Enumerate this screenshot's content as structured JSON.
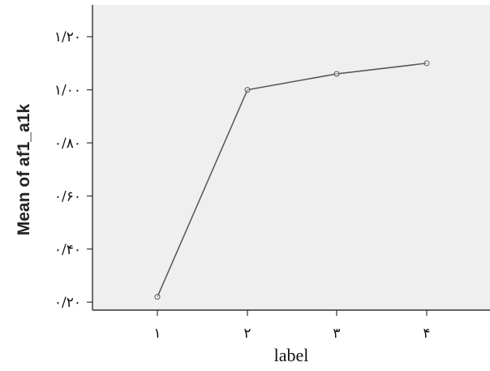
{
  "chart_data": {
    "type": "line",
    "xlabel": "label",
    "ylabel": "Mean of af1_a1k",
    "x": [
      "۱",
      "۲",
      "۳",
      "۴"
    ],
    "series": [
      {
        "values": [
          0.22,
          1.0,
          1.06,
          1.1
        ]
      }
    ],
    "ylim": [
      0.17,
      1.32
    ],
    "yticks": [
      0.2,
      0.4,
      0.6,
      0.8,
      1.0,
      1.2
    ],
    "ytick_labels": [
      "۰/۲۰",
      "۰/۴۰",
      "۰/۶۰",
      "۰/۸۰",
      "۱/۰۰",
      "۱/۲۰"
    ],
    "grid": false,
    "colors": {
      "plot_bg": "#efefef",
      "line": "#555555",
      "marker": "#555555",
      "axis": "#333333"
    }
  }
}
